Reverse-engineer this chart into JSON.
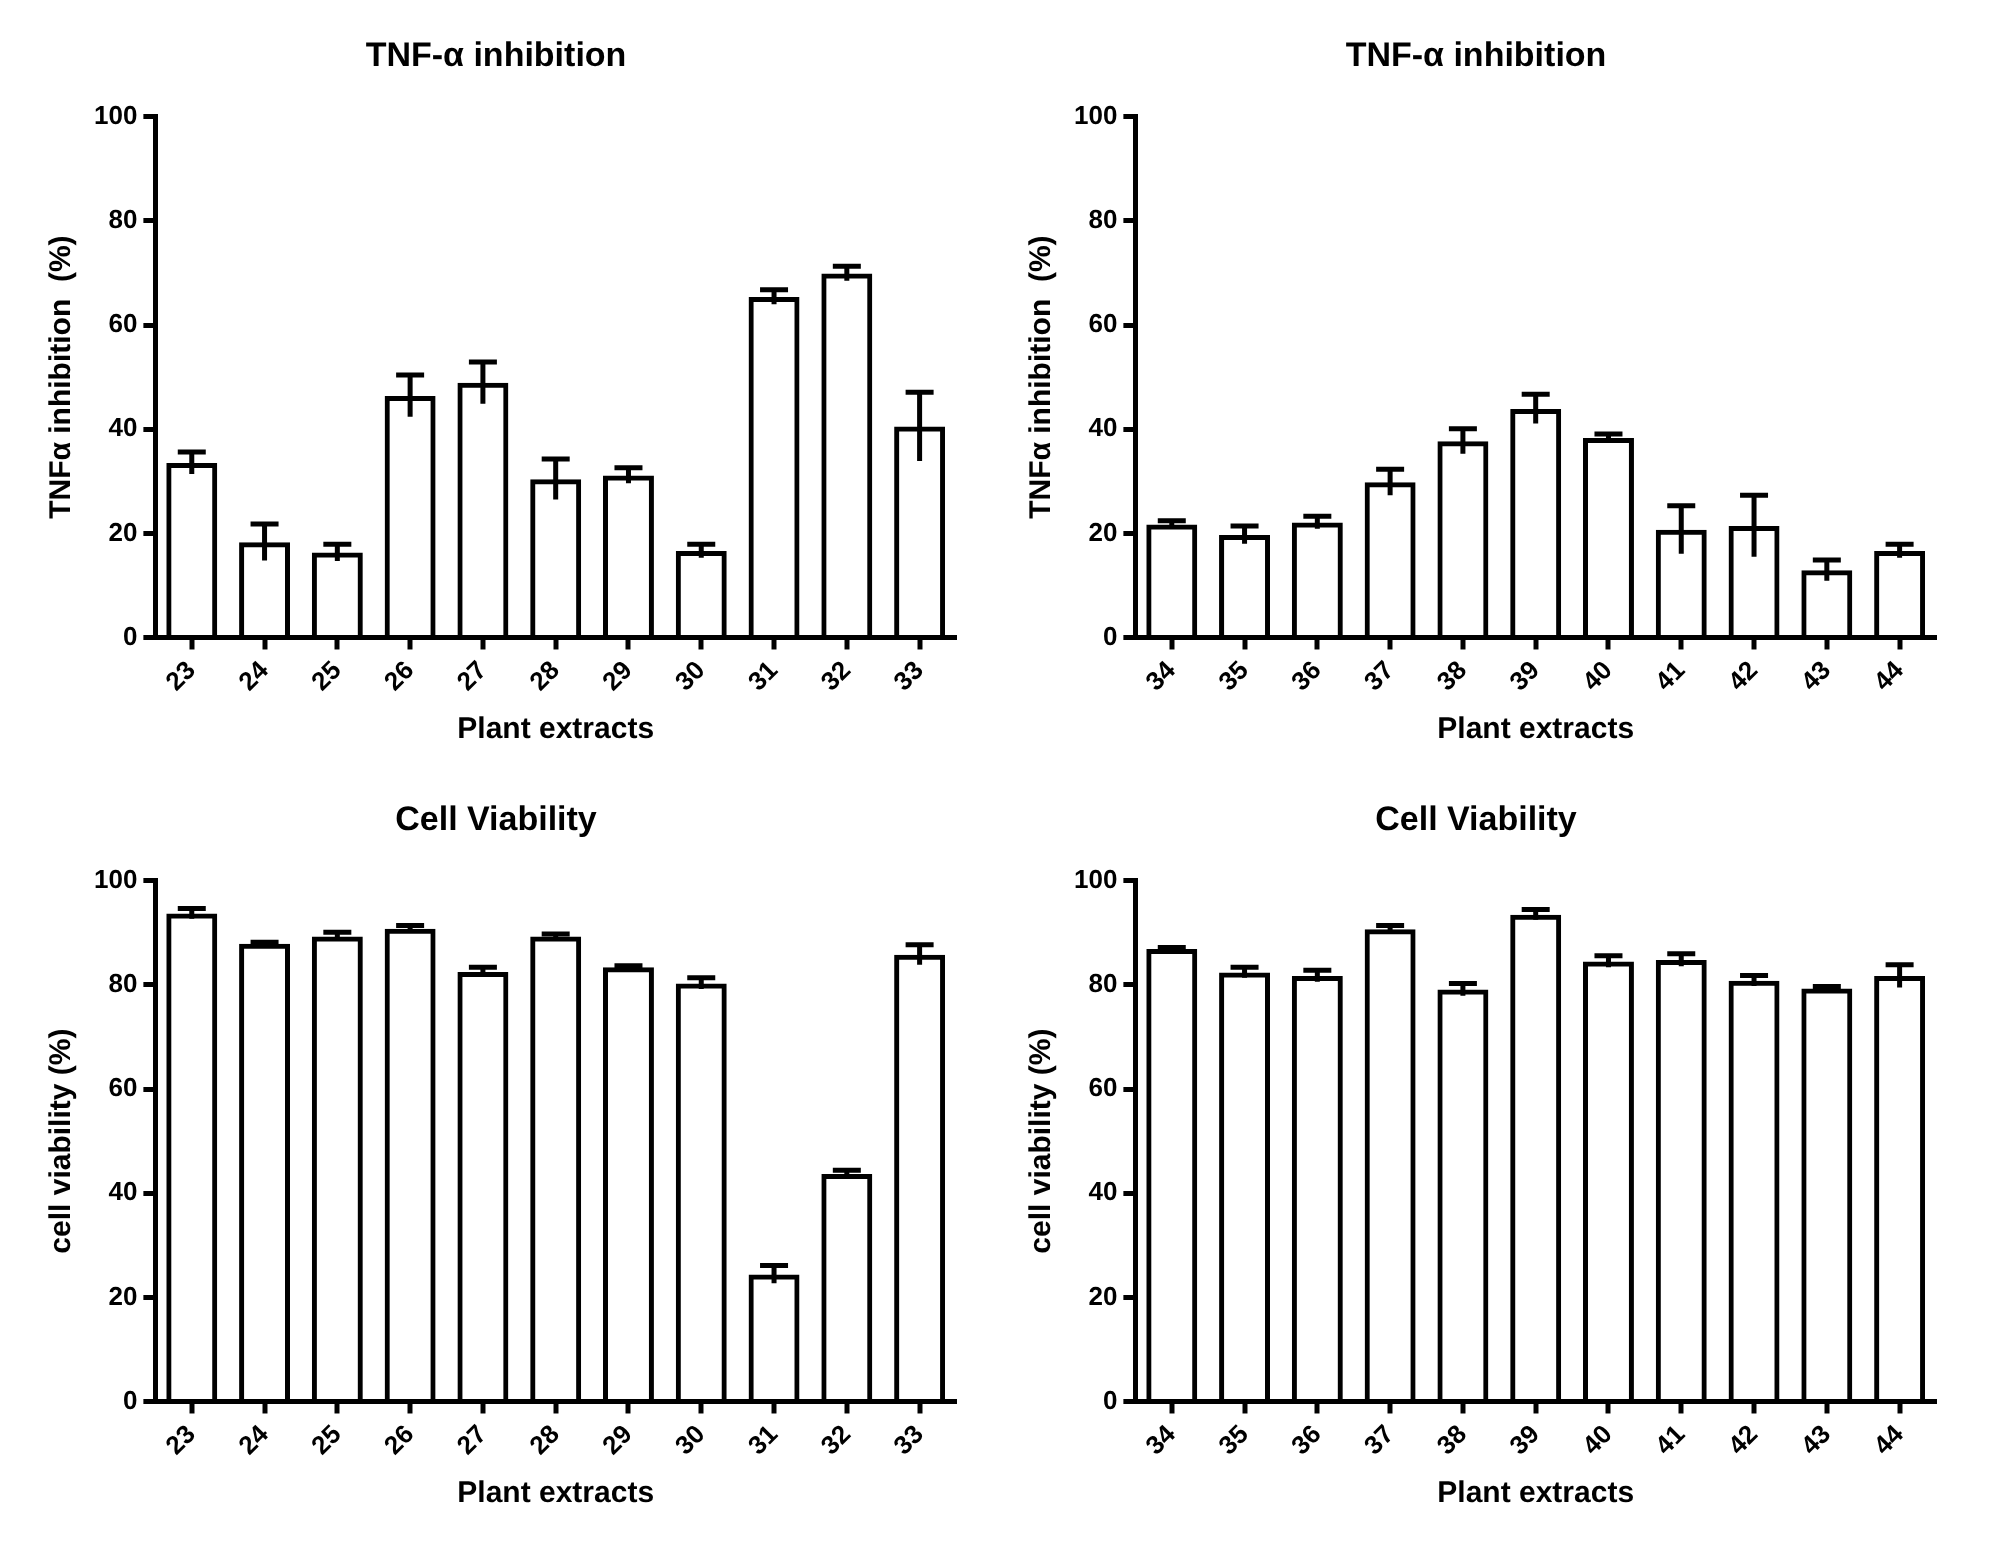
{
  "chart_data": [
    {
      "type": "bar",
      "title": "TNF-α inhibition",
      "xlabel": "Plant extracts",
      "ylabel": "TNFα inhibition  (%)",
      "categories": [
        "23",
        "24",
        "25",
        "26",
        "27",
        "28",
        "29",
        "30",
        "31",
        "32",
        "33"
      ],
      "values": [
        33.5,
        18.3,
        16.3,
        46.4,
        48.9,
        30.4,
        31.1,
        16.6,
        65.4,
        69.9,
        40.5
      ],
      "errors": [
        2.1,
        3.5,
        1.6,
        4,
        4,
        3.9,
        1.5,
        1.3,
        1.4,
        1.4,
        6.6
      ],
      "color": "#000000",
      "ylim": [
        0,
        100
      ],
      "yticks": [
        0,
        20,
        40,
        60,
        80,
        100
      ],
      "grid": false,
      "legend": false
    },
    {
      "type": "bar",
      "title": "TNF-α inhibition",
      "xlabel": "Plant extracts",
      "ylabel": "TNFα inhibition  (%)",
      "categories": [
        "34",
        "35",
        "36",
        "37",
        "38",
        "39",
        "40",
        "41",
        "42",
        "43",
        "44"
      ],
      "values": [
        21.7,
        19.7,
        22.1,
        29.8,
        37.7,
        43.9,
        38.3,
        20.7,
        21.4,
        12.9,
        16.6
      ],
      "errors": [
        0.7,
        1.7,
        1.2,
        2.5,
        2.4,
        2.8,
        0.8,
        4.6,
        5.9,
        2,
        1.3
      ],
      "color": "#000000",
      "ylim": [
        0,
        100
      ],
      "yticks": [
        0,
        20,
        40,
        60,
        80,
        100
      ],
      "grid": false,
      "legend": false
    },
    {
      "type": "bar",
      "title": "Cell Viability",
      "xlabel": "Plant extracts",
      "ylabel": "cell viability (%)",
      "categories": [
        "23",
        "24",
        "25",
        "26",
        "27",
        "28",
        "29",
        "30",
        "31",
        "32",
        "33"
      ],
      "values": [
        93.7,
        87.9,
        89.3,
        90.8,
        82.5,
        89.3,
        83.4,
        80.3,
        24.4,
        43.7,
        85.8
      ],
      "errors": [
        1,
        0.3,
        0.8,
        0.6,
        0.9,
        0.5,
        0.3,
        1.1,
        1.7,
        0.7,
        1.9
      ],
      "color": "#000000",
      "ylim": [
        0,
        100
      ],
      "yticks": [
        0,
        20,
        40,
        60,
        80,
        100
      ],
      "grid": false,
      "legend": false
    },
    {
      "type": "bar",
      "title": "Cell Viability",
      "xlabel": "Plant extracts",
      "ylabel": "cell viability (%)",
      "categories": [
        "34",
        "35",
        "36",
        "37",
        "38",
        "39",
        "40",
        "41",
        "42",
        "43",
        "44"
      ],
      "values": [
        86.9,
        82.4,
        81.7,
        90.7,
        79.1,
        93.5,
        84.5,
        84.8,
        80.8,
        79.3,
        81.7
      ],
      "errors": [
        0.3,
        1,
        1.1,
        0.7,
        1.2,
        1,
        1.1,
        1.2,
        1,
        0.4,
        2.2
      ],
      "color": "#000000",
      "ylim": [
        0,
        100
      ],
      "yticks": [
        0,
        20,
        40,
        60,
        80,
        100
      ],
      "grid": false,
      "legend": false
    }
  ]
}
